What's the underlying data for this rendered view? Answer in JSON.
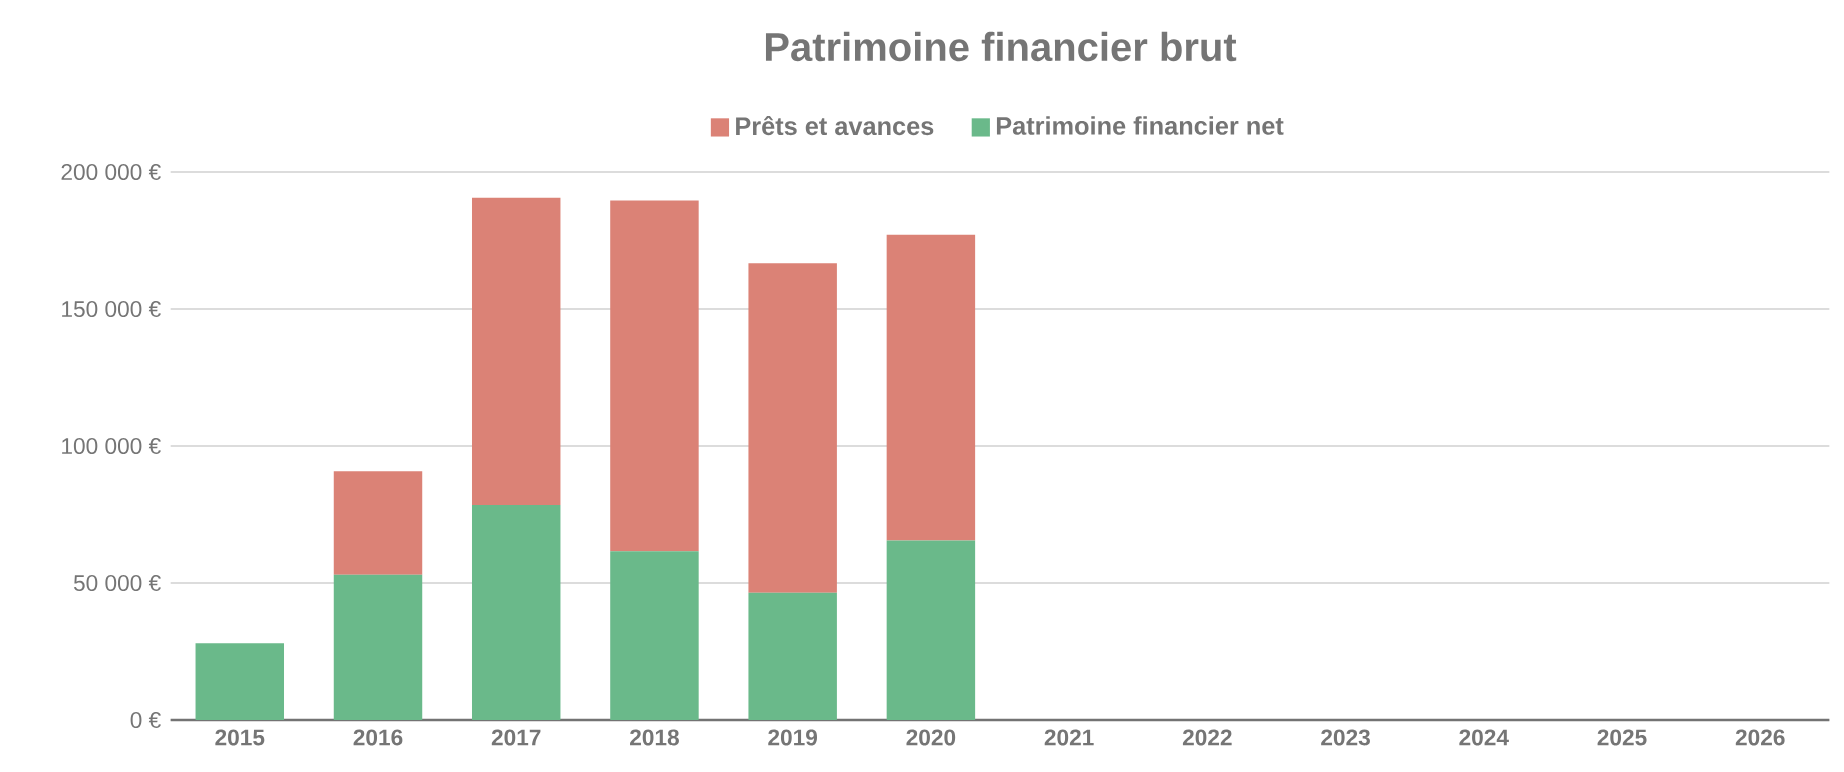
{
  "chart_data": {
    "type": "bar",
    "title": "Patrimoine financier brut",
    "stacked": true,
    "categories": [
      "2015",
      "2016",
      "2017",
      "2018",
      "2019",
      "2020",
      "2021",
      "2022",
      "2023",
      "2024",
      "2025",
      "2026"
    ],
    "series": [
      {
        "name": "Patrimoine financier net",
        "color": "#6ab98a",
        "values": [
          28000,
          53000,
          78500,
          61600,
          46400,
          65500,
          null,
          null,
          null,
          null,
          null,
          null
        ]
      },
      {
        "name": "Prêts et avances",
        "color": "#db8276",
        "values": [
          null,
          37800,
          112100,
          128000,
          120300,
          111600,
          null,
          null,
          null,
          null,
          null,
          null
        ]
      }
    ],
    "ylim": [
      0,
      200000
    ],
    "yticks": [
      {
        "value": 0,
        "label": "0 €"
      },
      {
        "value": 50000,
        "label": "50 000 €"
      },
      {
        "value": 100000,
        "label": "100 000 €"
      },
      {
        "value": 150000,
        "label": "150 000 €"
      },
      {
        "value": 200000,
        "label": "200 000 €"
      }
    ],
    "grid": "y",
    "legend": "top"
  }
}
